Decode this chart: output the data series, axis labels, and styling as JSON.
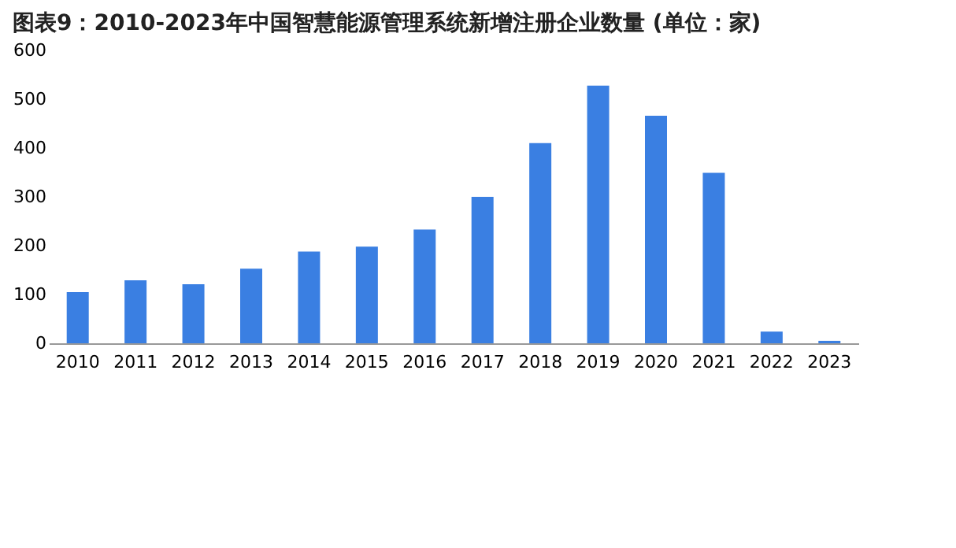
{
  "chart_data": {
    "type": "bar",
    "title": "图表9：2010-2023年中国智慧能源管理系统新增注册企业数量 (单位：家)",
    "categories": [
      "2010",
      "2011",
      "2012",
      "2013",
      "2014",
      "2015",
      "2016",
      "2017",
      "2018",
      "2019",
      "2020",
      "2021",
      "2022",
      "2023"
    ],
    "values": [
      105,
      129,
      121,
      153,
      188,
      198,
      233,
      300,
      410,
      528,
      466,
      349,
      24,
      5
    ],
    "color": "#3a7fe2",
    "ylim": [
      0,
      600
    ],
    "yticks": [
      0,
      100,
      200,
      300,
      400,
      500,
      600
    ],
    "grid": false
  }
}
